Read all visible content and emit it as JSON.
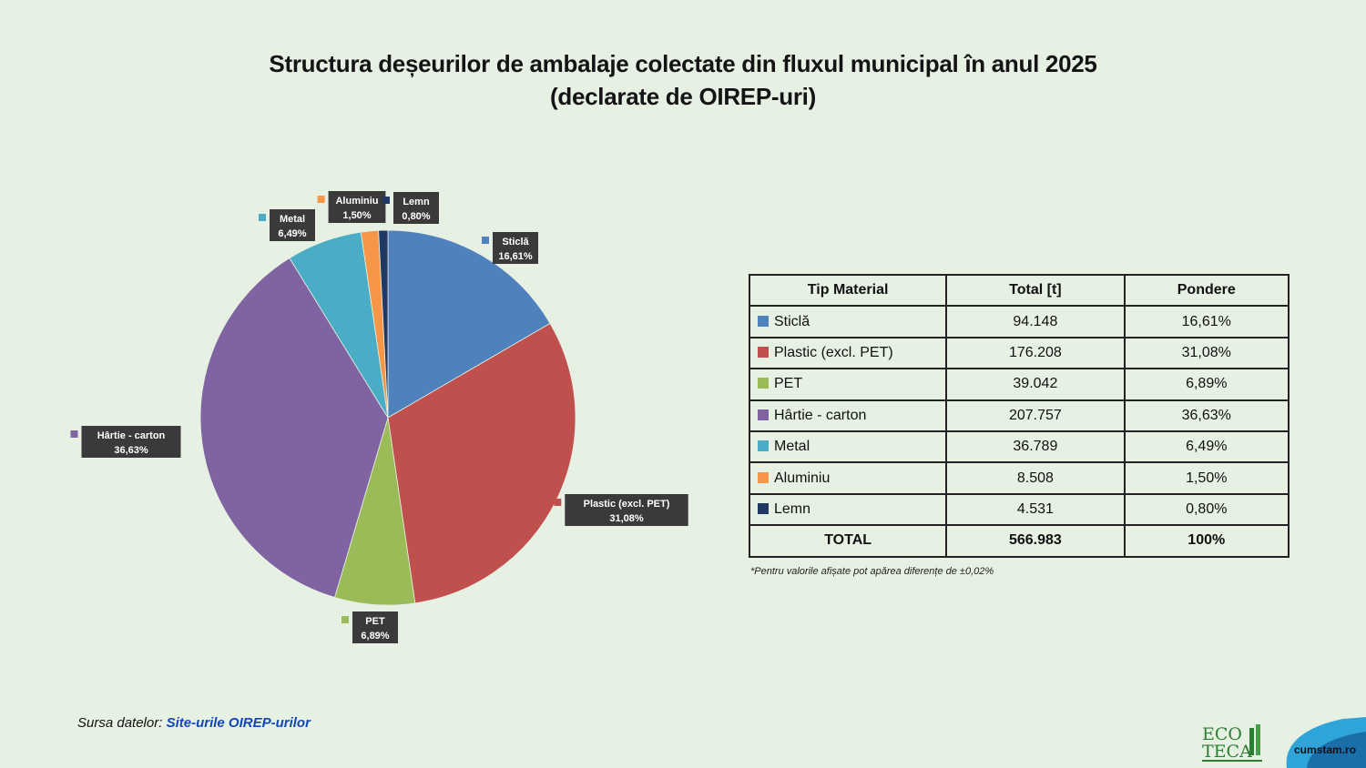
{
  "title_line1": "Structura deșeurilor de ambalaje colectate din fluxul municipal în anul 2025",
  "title_line2": "(declarate de OIREP-uri)",
  "chart_data": {
    "type": "pie",
    "title": "Structura deșeurilor de ambalaje colectate din fluxul municipal în anul 2025 (declarate de OIREP-uri)",
    "categories": [
      "Sticlă",
      "Plastic (excl. PET)",
      "PET",
      "Hârtie - carton",
      "Metal",
      "Aluminiu",
      "Lemn"
    ],
    "values": [
      16.61,
      31.08,
      6.89,
      36.63,
      6.49,
      1.5,
      0.8
    ],
    "labels": [
      "16,61%",
      "31,08%",
      "6,89%",
      "36,63%",
      "6,49%",
      "1,50%",
      "0,80%"
    ],
    "colors": [
      "#4f81bd",
      "#c0504d",
      "#9bbb59",
      "#8064a2",
      "#4bacc6",
      "#f79646",
      "#1f3864"
    ],
    "start_angle_deg": 0,
    "direction": "clockwise"
  },
  "table": {
    "headers": [
      "Tip Material",
      "Total [t]",
      "Pondere"
    ],
    "rows": [
      {
        "material": "Sticlă",
        "total": "94.148",
        "pondere": "16,61%",
        "color": "#4f81bd"
      },
      {
        "material": "Plastic (excl. PET)",
        "total": "176.208",
        "pondere": "31,08%",
        "color": "#c0504d"
      },
      {
        "material": "PET",
        "total": "39.042",
        "pondere": "6,89%",
        "color": "#9bbb59"
      },
      {
        "material": "Hârtie - carton",
        "total": "207.757",
        "pondere": "36,63%",
        "color": "#8064a2"
      },
      {
        "material": "Metal",
        "total": "36.789",
        "pondere": "6,49%",
        "color": "#4bacc6"
      },
      {
        "material": "Aluminiu",
        "total": "8.508",
        "pondere": "1,50%",
        "color": "#f79646"
      },
      {
        "material": "Lemn",
        "total": "4.531",
        "pondere": "0,80%",
        "color": "#1f3864"
      }
    ],
    "total_row": {
      "label": "TOTAL",
      "total": "566.983",
      "pondere": "100%"
    }
  },
  "footnote": "*Pentru valorile afișate pot apărea diferențe de ±0,02%",
  "source": {
    "prefix": "Sursa datelor: ",
    "link": "Site-urile OIREP-urilor"
  },
  "logos": {
    "ecoteca_line1": "ECO",
    "ecoteca_line2": "TECA",
    "cumstam": "cumstam.ro"
  }
}
